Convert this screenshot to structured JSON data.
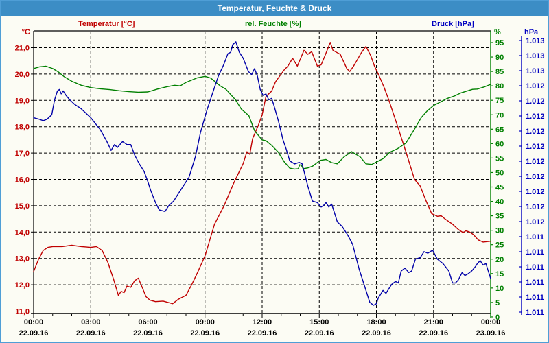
{
  "window": {
    "title": "Temperatur, Feuchte & Druck",
    "titlebar_color": "#3c8dc5",
    "border_color": "#4f9ed6",
    "background_color": "#fcfcf4"
  },
  "legend": {
    "temperature": "Temperatur [°C]",
    "humidity": "rel. Feuchte [%]",
    "pressure": "Druck [hPa]"
  },
  "axes": {
    "temperature": {
      "unit": "°C",
      "color": "#c00000",
      "tick_labels": [
        "21,0",
        "20,0",
        "19,0",
        "18,0",
        "17,0",
        "16,0",
        "15,0",
        "14,0",
        "13,0",
        "12,0",
        "11,0"
      ],
      "tick_values": [
        21,
        20,
        19,
        18,
        17,
        16,
        15,
        14,
        13,
        12,
        11
      ]
    },
    "humidity": {
      "unit": "%",
      "color": "#008000",
      "tick_labels": [
        "95",
        "90",
        "85",
        "80",
        "75",
        "70",
        "65",
        "60",
        "55",
        "50",
        "45",
        "40",
        "35",
        "30",
        "25",
        "20",
        "15",
        "10",
        "5",
        "0"
      ],
      "tick_values": [
        95,
        90,
        85,
        80,
        75,
        70,
        65,
        60,
        55,
        50,
        45,
        40,
        35,
        30,
        25,
        20,
        15,
        10,
        5,
        0
      ]
    },
    "pressure": {
      "unit": "hPa",
      "color": "#0000c0",
      "tick_labels": [
        "1.013",
        "1.013",
        "1.013",
        "1.012",
        "1.012",
        "1.012",
        "1.012",
        "1.012",
        "1.012",
        "1.012",
        "1.012",
        "1.012",
        "1.012",
        "1.011",
        "1.011",
        "1.011",
        "1.011",
        "1.011",
        "1.011"
      ]
    },
    "x": {
      "time_labels": [
        "00:00",
        "03:00",
        "06:00",
        "09:00",
        "12:00",
        "15:00",
        "18:00",
        "21:00",
        "00:00"
      ],
      "date_labels": [
        "22.09.16",
        "22.09.16",
        "22.09.16",
        "22.09.16",
        "22.09.16",
        "22.09.16",
        "22.09.16",
        "22.09.16",
        "23.09.16"
      ],
      "hours_range": [
        0,
        24
      ],
      "major_step_hours": 3,
      "minor_step_hours": 1
    }
  },
  "chart_data": {
    "type": "line",
    "title": "Temperatur, Feuchte & Druck",
    "grid": "dashed-black",
    "x_unit": "hours since 22.09.16 00:00",
    "series": [
      {
        "name": "Temperatur",
        "unit": "°C",
        "color": "#c00000",
        "axis": "temperature",
        "axis_range": [
          10.9,
          21.65
        ],
        "points": [
          [
            0,
            12.5
          ],
          [
            0.25,
            12.95
          ],
          [
            0.5,
            13.3
          ],
          [
            0.75,
            13.42
          ],
          [
            1,
            13.45
          ],
          [
            1.5,
            13.45
          ],
          [
            2,
            13.5
          ],
          [
            2.5,
            13.45
          ],
          [
            3,
            13.42
          ],
          [
            3.3,
            13.45
          ],
          [
            3.6,
            13.3
          ],
          [
            3.9,
            12.85
          ],
          [
            4.2,
            12.2
          ],
          [
            4.45,
            11.6
          ],
          [
            4.6,
            11.75
          ],
          [
            4.75,
            11.7
          ],
          [
            4.9,
            11.95
          ],
          [
            5.1,
            11.9
          ],
          [
            5.3,
            12.15
          ],
          [
            5.5,
            12.25
          ],
          [
            5.7,
            11.9
          ],
          [
            5.9,
            11.55
          ],
          [
            6.1,
            11.42
          ],
          [
            6.4,
            11.36
          ],
          [
            6.8,
            11.38
          ],
          [
            7.1,
            11.32
          ],
          [
            7.3,
            11.28
          ],
          [
            7.6,
            11.45
          ],
          [
            8,
            11.6
          ],
          [
            8.3,
            12.0
          ],
          [
            8.6,
            12.45
          ],
          [
            9,
            13.1
          ],
          [
            9.5,
            14.3
          ],
          [
            10,
            15.0
          ],
          [
            10.5,
            15.85
          ],
          [
            11,
            16.6
          ],
          [
            11.2,
            17.05
          ],
          [
            11.35,
            16.95
          ],
          [
            11.5,
            17.55
          ],
          [
            11.8,
            18.05
          ],
          [
            12,
            18.45
          ],
          [
            12.2,
            19.15
          ],
          [
            12.35,
            19.25
          ],
          [
            12.5,
            19.35
          ],
          [
            12.7,
            19.7
          ],
          [
            13.15,
            20.15
          ],
          [
            13.35,
            20.3
          ],
          [
            13.6,
            20.6
          ],
          [
            13.85,
            20.3
          ],
          [
            14.2,
            20.9
          ],
          [
            14.4,
            20.75
          ],
          [
            14.6,
            20.85
          ],
          [
            14.9,
            20.3
          ],
          [
            15.1,
            20.35
          ],
          [
            15.3,
            20.7
          ],
          [
            15.58,
            21.2
          ],
          [
            15.72,
            20.9
          ],
          [
            15.85,
            20.85
          ],
          [
            16.1,
            20.75
          ],
          [
            16.45,
            20.2
          ],
          [
            16.6,
            20.1
          ],
          [
            16.8,
            20.3
          ],
          [
            17,
            20.55
          ],
          [
            17.2,
            20.8
          ],
          [
            17.45,
            21.05
          ],
          [
            17.7,
            20.7
          ],
          [
            17.9,
            20.3
          ],
          [
            18.1,
            20.0
          ],
          [
            18.4,
            19.5
          ],
          [
            18.66,
            19.0
          ],
          [
            19.12,
            18.0
          ],
          [
            19.57,
            17.0
          ],
          [
            20,
            16.0
          ],
          [
            20.3,
            15.75
          ],
          [
            20.6,
            15.2
          ],
          [
            20.9,
            14.7
          ],
          [
            21.05,
            14.65
          ],
          [
            21.2,
            14.6
          ],
          [
            21.4,
            14.62
          ],
          [
            21.6,
            14.5
          ],
          [
            22,
            14.3
          ],
          [
            22.3,
            14.1
          ],
          [
            22.55,
            13.98
          ],
          [
            22.7,
            14.05
          ],
          [
            22.9,
            14.0
          ],
          [
            23.1,
            13.9
          ],
          [
            23.35,
            13.7
          ],
          [
            23.6,
            13.62
          ],
          [
            24,
            13.65
          ]
        ]
      },
      {
        "name": "rel. Feuchte",
        "unit": "%",
        "color": "#008000",
        "axis": "humidity",
        "axis_range": [
          0,
          99
        ],
        "points": [
          [
            0,
            86
          ],
          [
            0.3,
            86.6
          ],
          [
            0.65,
            86.8
          ],
          [
            1,
            86
          ],
          [
            1.3,
            84.8
          ],
          [
            1.6,
            83.2
          ],
          [
            2,
            81.6
          ],
          [
            2.5,
            80.2
          ],
          [
            3,
            79.4
          ],
          [
            3.5,
            79
          ],
          [
            4,
            78.7
          ],
          [
            4.5,
            78.3
          ],
          [
            5,
            78
          ],
          [
            5.5,
            77.8
          ],
          [
            6,
            77.9
          ],
          [
            6.5,
            78.9
          ],
          [
            7,
            79.7
          ],
          [
            7.4,
            80.2
          ],
          [
            7.7,
            80
          ],
          [
            8,
            81.2
          ],
          [
            8.6,
            82.8
          ],
          [
            9,
            83.3
          ],
          [
            9.3,
            82.7
          ],
          [
            9.8,
            80
          ],
          [
            10.1,
            78.8
          ],
          [
            10.6,
            75.2
          ],
          [
            10.9,
            72
          ],
          [
            11.3,
            69.7
          ],
          [
            11.6,
            64.5
          ],
          [
            12,
            61.3
          ],
          [
            12.2,
            61
          ],
          [
            12.5,
            59.4
          ],
          [
            12.85,
            57
          ],
          [
            13.15,
            53.8
          ],
          [
            13.45,
            51.5
          ],
          [
            13.7,
            51.2
          ],
          [
            13.9,
            51.3
          ],
          [
            13.97,
            52.7
          ],
          [
            14.07,
            52.4
          ],
          [
            14.15,
            51.3
          ],
          [
            14.4,
            51.6
          ],
          [
            14.65,
            52.2
          ],
          [
            15.05,
            54.2
          ],
          [
            15.35,
            54.5
          ],
          [
            15.65,
            53.4
          ],
          [
            15.95,
            53
          ],
          [
            16.3,
            55.4
          ],
          [
            16.7,
            57.2
          ],
          [
            17.15,
            55.4
          ],
          [
            17.45,
            53
          ],
          [
            17.75,
            52.8
          ],
          [
            18,
            53.6
          ],
          [
            18.35,
            54.8
          ],
          [
            18.7,
            57
          ],
          [
            19.1,
            58.2
          ],
          [
            19.55,
            60.2
          ],
          [
            20,
            65
          ],
          [
            20.35,
            69
          ],
          [
            20.65,
            71.2
          ],
          [
            21,
            73.2
          ],
          [
            21.7,
            75.6
          ],
          [
            22.1,
            76.5
          ],
          [
            22.45,
            77.6
          ],
          [
            23.05,
            78.8
          ],
          [
            23.3,
            78.9
          ],
          [
            23.65,
            79.6
          ],
          [
            24,
            80.5
          ]
        ]
      },
      {
        "name": "Druck",
        "unit": "hPa",
        "color": "#0000a8",
        "axis": "pressure",
        "axis_range": [
          1010.92,
          1012.82
        ],
        "points": [
          [
            0,
            1012.23
          ],
          [
            0.3,
            1012.22
          ],
          [
            0.5,
            1012.21
          ],
          [
            0.7,
            1012.22
          ],
          [
            0.95,
            1012.25
          ],
          [
            1.1,
            1012.35
          ],
          [
            1.25,
            1012.41
          ],
          [
            1.35,
            1012.42
          ],
          [
            1.45,
            1012.39
          ],
          [
            1.55,
            1012.41
          ],
          [
            1.7,
            1012.38
          ],
          [
            1.9,
            1012.35
          ],
          [
            2.15,
            1012.32
          ],
          [
            2.5,
            1012.29
          ],
          [
            3,
            1012.23
          ],
          [
            3.5,
            1012.15
          ],
          [
            3.85,
            1012.07
          ],
          [
            4.07,
            1012.01
          ],
          [
            4.25,
            1012.05
          ],
          [
            4.4,
            1012.03
          ],
          [
            4.67,
            1012.07
          ],
          [
            4.9,
            1012.05
          ],
          [
            5.1,
            1012.05
          ],
          [
            5.3,
            1011.98
          ],
          [
            5.55,
            1011.92
          ],
          [
            5.8,
            1011.87
          ],
          [
            6,
            1011.8
          ],
          [
            6.15,
            1011.74
          ],
          [
            6.4,
            1011.66
          ],
          [
            6.6,
            1011.61
          ],
          [
            6.9,
            1011.6
          ],
          [
            7.1,
            1011.64
          ],
          [
            7.35,
            1011.67
          ],
          [
            7.6,
            1011.72
          ],
          [
            7.8,
            1011.76
          ],
          [
            8.16,
            1011.83
          ],
          [
            8.5,
            1011.97
          ],
          [
            8.76,
            1012.13
          ],
          [
            9.1,
            1012.28
          ],
          [
            9.36,
            1012.38
          ],
          [
            9.7,
            1012.51
          ],
          [
            9.96,
            1012.58
          ],
          [
            10.2,
            1012.66
          ],
          [
            10.35,
            1012.67
          ],
          [
            10.45,
            1012.72
          ],
          [
            10.62,
            1012.74
          ],
          [
            10.8,
            1012.67
          ],
          [
            11,
            1012.63
          ],
          [
            11.28,
            1012.54
          ],
          [
            11.45,
            1012.52
          ],
          [
            11.6,
            1012.56
          ],
          [
            11.75,
            1012.51
          ],
          [
            11.9,
            1012.42
          ],
          [
            12.05,
            1012.38
          ],
          [
            12.2,
            1012.39
          ],
          [
            12.35,
            1012.35
          ],
          [
            12.5,
            1012.36
          ],
          [
            12.6,
            1012.32
          ],
          [
            12.85,
            1012.21
          ],
          [
            13.1,
            1012.08
          ],
          [
            13.26,
            1012.02
          ],
          [
            13.45,
            1011.94
          ],
          [
            13.7,
            1011.92
          ],
          [
            13.95,
            1011.93
          ],
          [
            14.1,
            1011.92
          ],
          [
            14.4,
            1011.77
          ],
          [
            14.64,
            1011.67
          ],
          [
            14.9,
            1011.66
          ],
          [
            15.1,
            1011.63
          ],
          [
            15.22,
            1011.64
          ],
          [
            15.35,
            1011.66
          ],
          [
            15.5,
            1011.63
          ],
          [
            15.65,
            1011.65
          ],
          [
            15.95,
            1011.53
          ],
          [
            16.2,
            1011.5
          ],
          [
            16.5,
            1011.44
          ],
          [
            16.75,
            1011.38
          ],
          [
            17.1,
            1011.21
          ],
          [
            17.35,
            1011.11
          ],
          [
            17.65,
            1010.99
          ],
          [
            17.85,
            1010.97
          ],
          [
            18,
            1010.98
          ],
          [
            18.1,
            1011.02
          ],
          [
            18.25,
            1011.05
          ],
          [
            18.35,
            1011.07
          ],
          [
            18.5,
            1011.05
          ],
          [
            18.65,
            1011.08
          ],
          [
            18.8,
            1011.11
          ],
          [
            19,
            1011.13
          ],
          [
            19.15,
            1011.12
          ],
          [
            19.3,
            1011.2
          ],
          [
            19.5,
            1011.22
          ],
          [
            19.7,
            1011.19
          ],
          [
            19.85,
            1011.2
          ],
          [
            20.05,
            1011.28
          ],
          [
            20.3,
            1011.29
          ],
          [
            20.5,
            1011.33
          ],
          [
            20.7,
            1011.32
          ],
          [
            20.95,
            1011.34
          ],
          [
            21.2,
            1011.28
          ],
          [
            21.5,
            1011.25
          ],
          [
            21.8,
            1011.2
          ],
          [
            22,
            1011.12
          ],
          [
            22.15,
            1011.12
          ],
          [
            22.3,
            1011.14
          ],
          [
            22.5,
            1011.19
          ],
          [
            22.65,
            1011.17
          ],
          [
            22.8,
            1011.18
          ],
          [
            23,
            1011.2
          ],
          [
            23.2,
            1011.23
          ],
          [
            23.3,
            1011.25
          ],
          [
            23.45,
            1011.27
          ],
          [
            23.6,
            1011.24
          ],
          [
            23.75,
            1011.25
          ],
          [
            23.85,
            1011.21
          ],
          [
            24,
            1011.15
          ]
        ]
      }
    ]
  }
}
